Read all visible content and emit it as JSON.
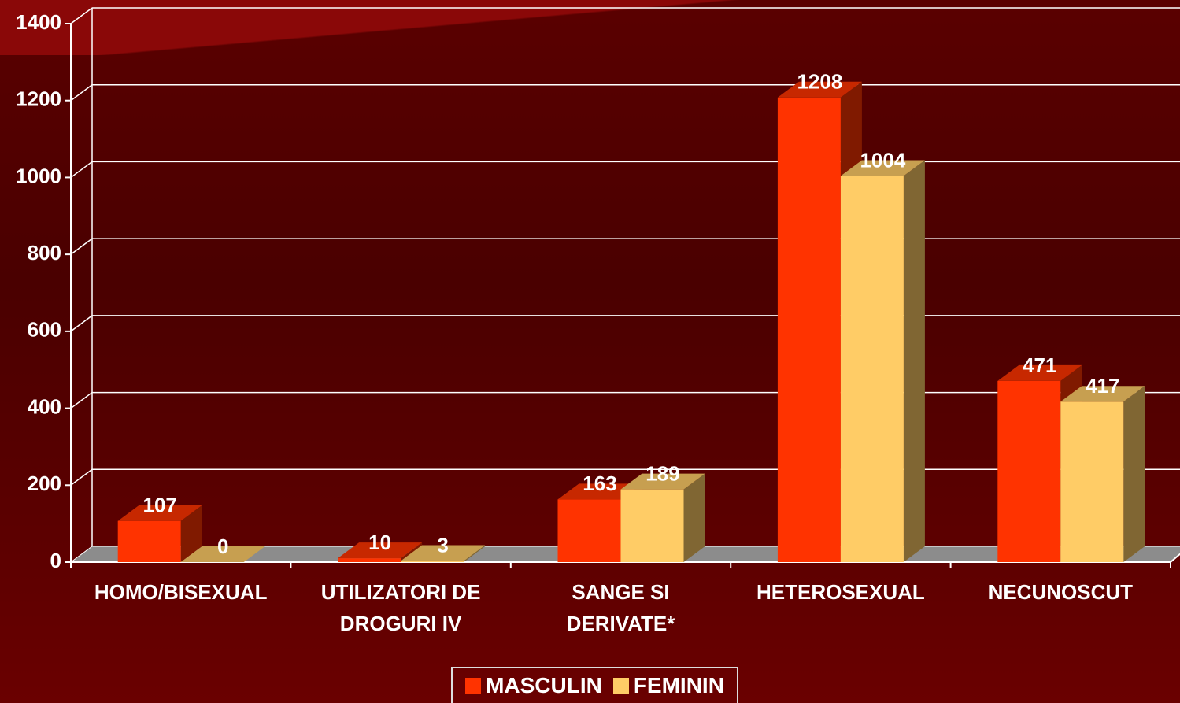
{
  "chart_data": {
    "type": "bar3d",
    "categories": [
      "HOMO/BISEXUAL",
      "UTILIZATORI DE DROGURI IV",
      "SANGE SI DERIVATE*",
      "HETEROSEXUAL",
      "NECUNOSCUT"
    ],
    "series": [
      {
        "name": "MASCULIN",
        "color": "#ff3300",
        "values": [
          107,
          10,
          163,
          1208,
          471
        ]
      },
      {
        "name": "FEMININ",
        "color": "#ffcc66",
        "values": [
          0,
          3,
          189,
          1004,
          417
        ]
      }
    ],
    "ylim": [
      0,
      1400
    ],
    "yticks": [
      0,
      200,
      400,
      600,
      800,
      1000,
      1200,
      1400
    ],
    "grid": true,
    "legend": "bottom"
  }
}
